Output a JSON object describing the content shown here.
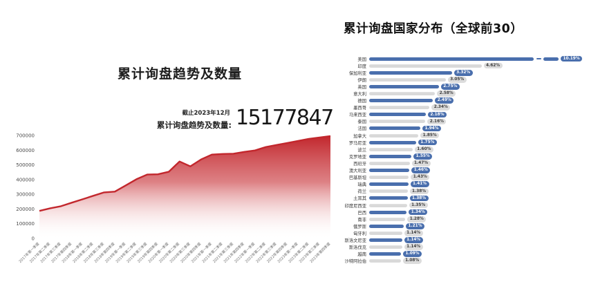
{
  "colors": {
    "red_line": "#c2272d",
    "red_fill_top": "#c2272d",
    "blue": "#4a6fad",
    "gray_bar": "#d9d9d9",
    "text_dark": "#1c1c1c"
  },
  "left": {
    "title": "累计询盘趋势及数量",
    "asof": "截止2023年12月",
    "total_label": "累计询盘趋势及数量:",
    "total_value": "15177847"
  },
  "right": {
    "title": "累计询盘国家分布（全球前30）"
  },
  "chart_data": [
    {
      "type": "area",
      "title": "累计询盘趋势及数量",
      "xlabel": "",
      "ylabel": "",
      "ylim": [
        0,
        700000
      ],
      "yticks": [
        0,
        100000,
        200000,
        300000,
        400000,
        500000,
        600000,
        700000
      ],
      "grid": false,
      "line_color": "#c2272d",
      "fill_style": "red gradient fading to white at bottom",
      "x": [
        "2017年第一季度",
        "2017年第二季度",
        "2017年第三季度",
        "2017年第四季度",
        "2018年第一季度",
        "2018年第二季度",
        "2018年第三季度",
        "2018年第四季度",
        "2019年第一季度",
        "2019年第二季度",
        "2019年第三季度",
        "2019年第四季度",
        "2020年第一季度",
        "2020年第二季度",
        "2020年第三季度",
        "2020年第四季度",
        "2021年第一季度",
        "2021年第二季度",
        "2021年第三季度",
        "2021年第四季度",
        "2022年第一季度",
        "2022年第二季度",
        "2022年第三季度",
        "2022年第四季度",
        "2023年第一季度",
        "2023年第二季度",
        "2023年第三季度",
        "2023年第四季度"
      ],
      "values": [
        187000,
        205000,
        219000,
        243000,
        266000,
        290000,
        313000,
        318000,
        360000,
        402000,
        434000,
        436000,
        453000,
        523000,
        490000,
        537000,
        570000,
        574000,
        576000,
        588000,
        598000,
        621000,
        635000,
        649000,
        663000,
        677000,
        686000,
        696000
      ]
    },
    {
      "type": "bar",
      "orientation": "horizontal",
      "title": "累计询盘国家分布（全球前30）",
      "unit": "%",
      "legend_position": "none",
      "bar_color_odd_rows": "#4a6fad",
      "bar_color_even_rows": "#d9d9d9",
      "axis_break_on_first_bar": true,
      "categories": [
        "美国",
        "印度",
        "保加利亚",
        "伊朗",
        "英国",
        "意大利",
        "德国",
        "墨西哥",
        "马来西亚",
        "泰国",
        "法国",
        "加拿大",
        "罗马尼亚",
        "波兰",
        "克罗地亚",
        "西班牙",
        "澳大利亚",
        "巴基斯坦",
        "瑞典",
        "荷兰",
        "土耳其",
        "印度尼西亚",
        "巴西",
        "南非",
        "俄罗斯",
        "匈牙利",
        "斯洛文尼亚",
        "斯洛伐克",
        "越南",
        "沙特阿拉伯"
      ],
      "values": [
        10.19,
        4.62,
        3.32,
        3.05,
        2.75,
        2.58,
        2.49,
        2.34,
        2.18,
        2.16,
        1.94,
        1.85,
        1.75,
        1.6,
        1.55,
        1.47,
        1.46,
        1.43,
        1.41,
        1.38,
        1.38,
        1.35,
        1.34,
        1.28,
        1.21,
        1.14,
        1.14,
        1.14,
        1.09,
        1.08
      ]
    }
  ]
}
